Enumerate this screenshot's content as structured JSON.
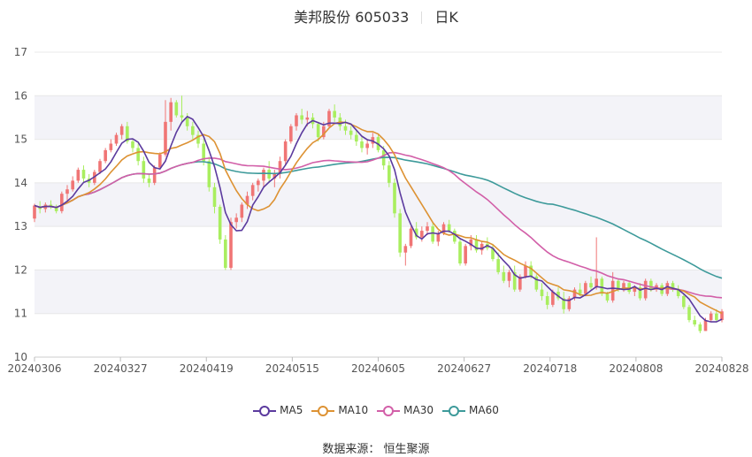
{
  "title": {
    "name": "美邦股份 605033",
    "period": "日K"
  },
  "source_text": "数据来源：   恒生聚源",
  "colors": {
    "up": "#f07575",
    "down": "#a9ee5f",
    "ma5": "#5b3a9e",
    "ma10": "#dd9233",
    "ma30": "#d25fa8",
    "ma60": "#3d9a9a",
    "band": "#f3f3f8",
    "grid": "#e8e8e8"
  },
  "chart_data": {
    "type": "candlestick",
    "x_ticks": [
      "20240306",
      "20240327",
      "20240419",
      "20240515",
      "20240605",
      "20240627",
      "20240718",
      "20240808",
      "20240828"
    ],
    "ylim": [
      10,
      17
    ],
    "y_ticks": [
      10,
      11,
      12,
      13,
      14,
      15,
      16,
      17
    ],
    "legend": [
      "MA5",
      "MA10",
      "MA30",
      "MA60"
    ],
    "legend_position": "bottom",
    "ohlc": [
      [
        13.18,
        13.52,
        13.1,
        13.48
      ],
      [
        13.45,
        13.58,
        13.3,
        13.4
      ],
      [
        13.4,
        13.55,
        13.32,
        13.5
      ],
      [
        13.5,
        13.6,
        13.4,
        13.45
      ],
      [
        13.45,
        13.5,
        13.3,
        13.35
      ],
      [
        13.35,
        13.8,
        13.3,
        13.75
      ],
      [
        13.75,
        13.95,
        13.6,
        13.85
      ],
      [
        13.85,
        14.15,
        13.8,
        14.05
      ],
      [
        14.05,
        14.35,
        14.0,
        14.3
      ],
      [
        14.3,
        14.4,
        14.0,
        14.1
      ],
      [
        14.1,
        14.2,
        13.9,
        14.0
      ],
      [
        14.0,
        14.3,
        13.95,
        14.25
      ],
      [
        14.25,
        14.55,
        14.2,
        14.5
      ],
      [
        14.5,
        14.8,
        14.45,
        14.75
      ],
      [
        14.75,
        15.0,
        14.7,
        14.9
      ],
      [
        14.9,
        15.15,
        14.85,
        15.1
      ],
      [
        15.1,
        15.35,
        15.0,
        15.3
      ],
      [
        15.3,
        15.4,
        14.9,
        14.95
      ],
      [
        14.95,
        15.0,
        14.7,
        14.8
      ],
      [
        14.8,
        14.9,
        14.4,
        14.5
      ],
      [
        14.5,
        14.6,
        14.0,
        14.1
      ],
      [
        14.1,
        14.2,
        13.9,
        14.0
      ],
      [
        14.0,
        14.4,
        13.95,
        14.35
      ],
      [
        14.35,
        14.7,
        14.3,
        14.65
      ],
      [
        14.65,
        15.9,
        14.6,
        15.4
      ],
      [
        15.4,
        15.95,
        15.2,
        15.85
      ],
      [
        15.85,
        15.9,
        15.5,
        15.55
      ],
      [
        15.55,
        16.0,
        15.4,
        15.5
      ],
      [
        15.5,
        15.6,
        15.2,
        15.3
      ],
      [
        15.3,
        15.4,
        15.0,
        15.1
      ],
      [
        15.1,
        15.2,
        14.8,
        14.9
      ],
      [
        14.9,
        15.0,
        14.4,
        14.5
      ],
      [
        14.5,
        14.6,
        13.8,
        13.9
      ],
      [
        13.9,
        14.0,
        13.3,
        13.45
      ],
      [
        13.45,
        13.5,
        12.6,
        12.7
      ],
      [
        12.7,
        12.8,
        12.0,
        12.05
      ],
      [
        12.05,
        13.2,
        12.0,
        13.1
      ],
      [
        13.1,
        13.3,
        12.95,
        13.2
      ],
      [
        13.2,
        13.55,
        13.1,
        13.5
      ],
      [
        13.5,
        13.8,
        13.4,
        13.7
      ],
      [
        13.7,
        14.0,
        13.6,
        13.95
      ],
      [
        13.95,
        14.1,
        13.8,
        14.05
      ],
      [
        14.05,
        14.35,
        13.9,
        14.3
      ],
      [
        14.3,
        14.5,
        14.0,
        14.1
      ],
      [
        14.1,
        14.3,
        13.9,
        14.2
      ],
      [
        14.2,
        14.6,
        14.1,
        14.5
      ],
      [
        14.5,
        15.0,
        14.4,
        14.95
      ],
      [
        14.95,
        15.35,
        14.9,
        15.3
      ],
      [
        15.3,
        15.6,
        15.2,
        15.55
      ],
      [
        15.55,
        15.7,
        15.35,
        15.45
      ],
      [
        15.45,
        15.65,
        15.3,
        15.5
      ],
      [
        15.5,
        15.6,
        15.25,
        15.35
      ],
      [
        15.35,
        15.4,
        14.95,
        15.05
      ],
      [
        15.05,
        15.4,
        15.0,
        15.3
      ],
      [
        15.3,
        15.7,
        15.25,
        15.65
      ],
      [
        15.65,
        15.8,
        15.4,
        15.5
      ],
      [
        15.5,
        15.6,
        15.2,
        15.3
      ],
      [
        15.3,
        15.45,
        15.1,
        15.2
      ],
      [
        15.2,
        15.3,
        15.0,
        15.1
      ],
      [
        15.1,
        15.2,
        14.85,
        14.95
      ],
      [
        14.95,
        15.05,
        14.7,
        14.8
      ],
      [
        14.8,
        15.0,
        14.65,
        14.9
      ],
      [
        14.9,
        15.15,
        14.8,
        15.05
      ],
      [
        15.05,
        15.1,
        14.7,
        14.75
      ],
      [
        14.75,
        14.85,
        14.3,
        14.4
      ],
      [
        14.4,
        14.5,
        13.9,
        14.0
      ],
      [
        14.0,
        14.1,
        13.2,
        13.3
      ],
      [
        13.3,
        13.4,
        12.3,
        12.4
      ],
      [
        12.4,
        12.6,
        12.1,
        12.55
      ],
      [
        12.55,
        13.0,
        12.5,
        12.95
      ],
      [
        12.95,
        13.1,
        12.7,
        12.75
      ],
      [
        12.75,
        13.0,
        12.65,
        12.9
      ],
      [
        12.9,
        13.1,
        12.8,
        13.0
      ],
      [
        13.0,
        13.1,
        12.6,
        12.65
      ],
      [
        12.65,
        12.9,
        12.55,
        12.85
      ],
      [
        12.85,
        13.1,
        12.8,
        13.05
      ],
      [
        13.05,
        13.15,
        12.85,
        12.9
      ],
      [
        12.9,
        12.95,
        12.6,
        12.65
      ],
      [
        12.65,
        12.7,
        12.1,
        12.15
      ],
      [
        12.15,
        12.6,
        12.1,
        12.55
      ],
      [
        12.55,
        12.8,
        12.45,
        12.7
      ],
      [
        12.7,
        12.8,
        12.4,
        12.45
      ],
      [
        12.45,
        12.65,
        12.35,
        12.6
      ],
      [
        12.6,
        12.75,
        12.45,
        12.5
      ],
      [
        12.5,
        12.6,
        12.2,
        12.25
      ],
      [
        12.25,
        12.4,
        11.9,
        11.95
      ],
      [
        11.95,
        12.1,
        11.7,
        11.75
      ],
      [
        11.75,
        12.0,
        11.6,
        11.95
      ],
      [
        11.95,
        12.1,
        11.5,
        11.55
      ],
      [
        11.55,
        11.9,
        11.5,
        11.85
      ],
      [
        11.85,
        12.2,
        11.8,
        12.1
      ],
      [
        12.1,
        12.2,
        11.8,
        11.85
      ],
      [
        11.85,
        11.9,
        11.5,
        11.55
      ],
      [
        11.55,
        11.7,
        11.3,
        11.4
      ],
      [
        11.4,
        11.5,
        11.1,
        11.2
      ],
      [
        11.2,
        11.55,
        11.15,
        11.5
      ],
      [
        11.5,
        11.6,
        11.3,
        11.35
      ],
      [
        11.35,
        11.5,
        11.0,
        11.1
      ],
      [
        11.1,
        11.4,
        11.05,
        11.35
      ],
      [
        11.35,
        11.6,
        11.3,
        11.55
      ],
      [
        11.55,
        11.7,
        11.4,
        11.45
      ],
      [
        11.45,
        11.75,
        11.4,
        11.7
      ],
      [
        11.7,
        11.85,
        11.55,
        11.6
      ],
      [
        11.6,
        12.75,
        11.55,
        11.8
      ],
      [
        11.8,
        11.85,
        11.4,
        11.45
      ],
      [
        11.45,
        11.5,
        11.25,
        11.3
      ],
      [
        11.3,
        11.95,
        11.25,
        11.75
      ],
      [
        11.75,
        11.8,
        11.5,
        11.55
      ],
      [
        11.55,
        11.75,
        11.5,
        11.7
      ],
      [
        11.7,
        11.75,
        11.45,
        11.5
      ],
      [
        11.5,
        11.65,
        11.4,
        11.6
      ],
      [
        11.6,
        11.7,
        11.3,
        11.35
      ],
      [
        11.35,
        11.8,
        11.3,
        11.75
      ],
      [
        11.75,
        11.8,
        11.5,
        11.55
      ],
      [
        11.55,
        11.7,
        11.5,
        11.65
      ],
      [
        11.65,
        11.7,
        11.4,
        11.45
      ],
      [
        11.45,
        11.75,
        11.4,
        11.7
      ],
      [
        11.7,
        11.75,
        11.5,
        11.55
      ],
      [
        11.55,
        11.65,
        11.35,
        11.4
      ],
      [
        11.4,
        11.45,
        11.1,
        11.15
      ],
      [
        11.15,
        11.2,
        10.8,
        10.85
      ],
      [
        10.85,
        10.95,
        10.7,
        10.75
      ],
      [
        10.75,
        10.8,
        10.55,
        10.6
      ],
      [
        10.6,
        10.9,
        10.6,
        10.85
      ],
      [
        10.85,
        11.05,
        10.8,
        11.0
      ],
      [
        11.0,
        11.1,
        10.8,
        10.85
      ],
      [
        10.85,
        11.1,
        10.8,
        11.05
      ]
    ]
  }
}
